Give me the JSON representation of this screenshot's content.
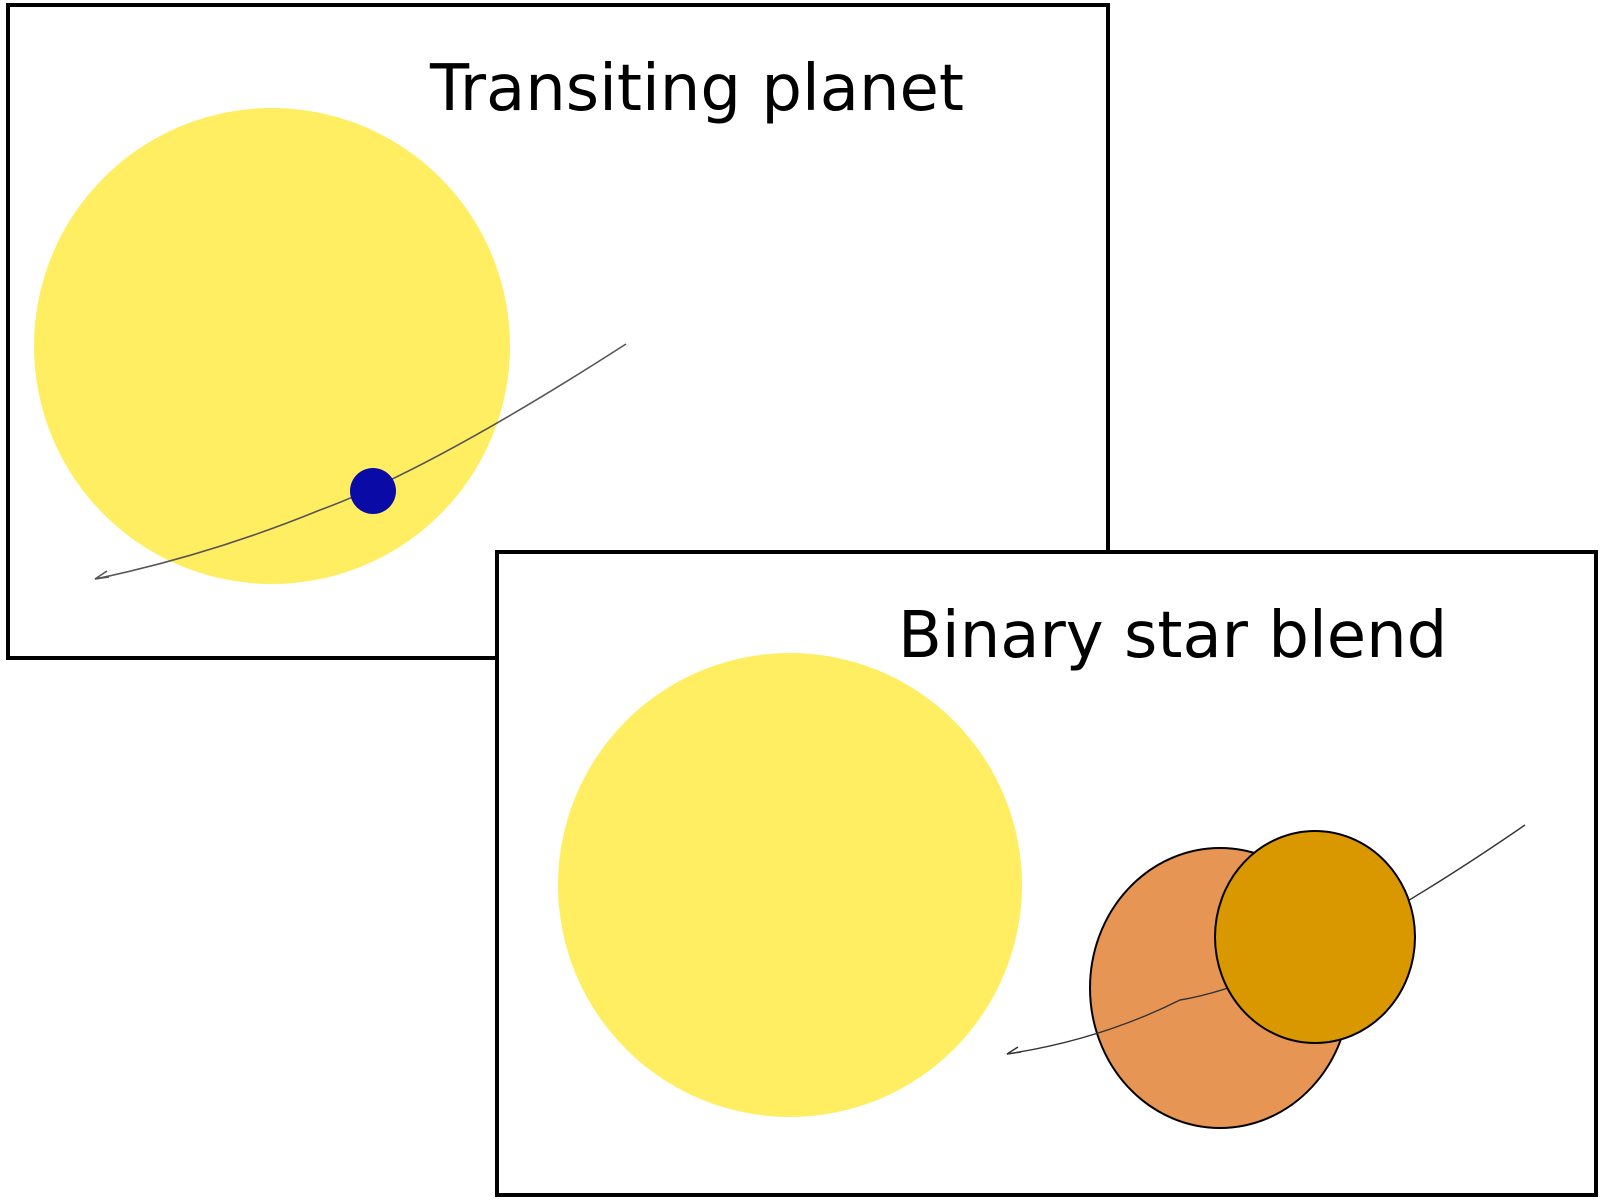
{
  "panels": [
    {
      "title": "Transiting planet"
    },
    {
      "title": "Binary star blend"
    }
  ],
  "colors": {
    "background": "#ffffff",
    "frame": "#000000",
    "primary_star": "#ffee62",
    "planet": "#0a0aa6",
    "companion_star_large": "#e69555",
    "companion_star_small": "#d99800",
    "orbit_line": "#555555"
  }
}
